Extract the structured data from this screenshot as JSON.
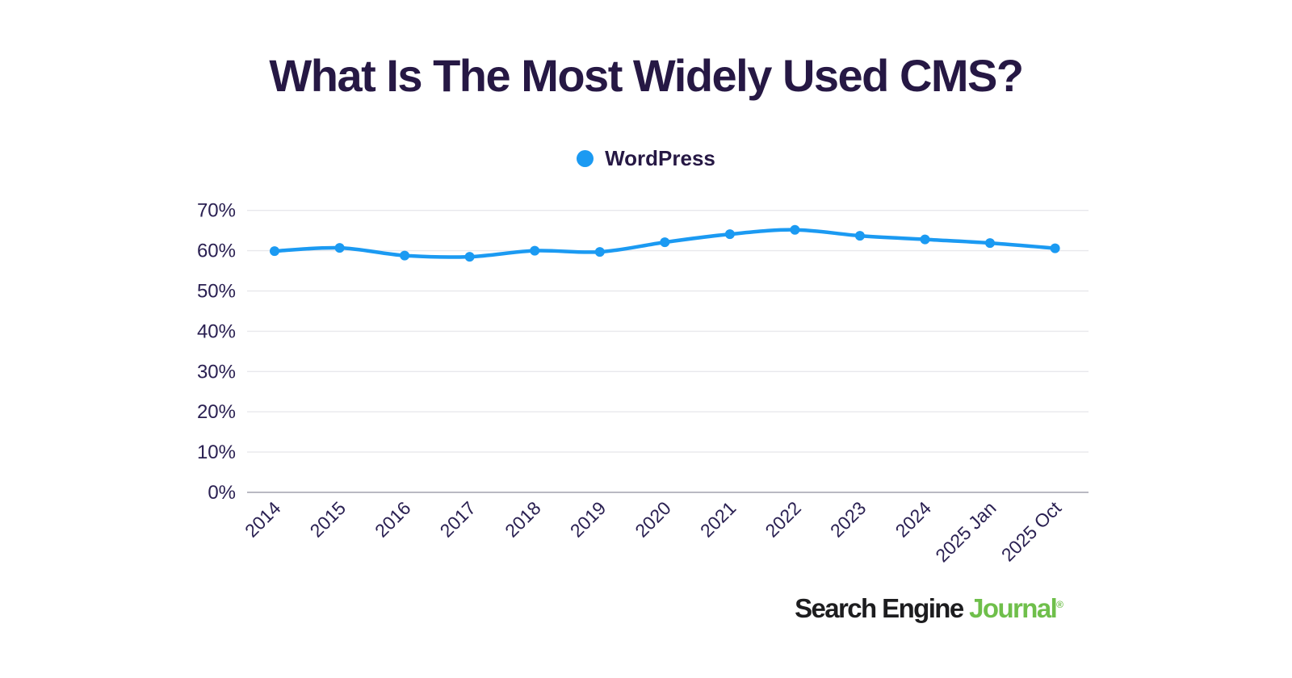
{
  "page": {
    "background": "#ffffff"
  },
  "title": "What Is The Most Widely Used CMS?",
  "legend": {
    "label": "WordPress"
  },
  "footer": {
    "brand_primary": "Search Engine",
    "brand_secondary": "Journal",
    "registered_mark": "®"
  },
  "colors": {
    "accent_blue": "#1B9AF2",
    "title_text": "#261844",
    "tick_text": "#2A2052",
    "gridline": "#E8E8EC",
    "axis_line": "#B9B9C2",
    "brand_dark": "#1D1D1F",
    "brand_green": "#6FBF4B"
  },
  "chart_data": {
    "type": "line",
    "title": "What Is The Most Widely Used CMS?",
    "categories": [
      "2014",
      "2015",
      "2016",
      "2017",
      "2018",
      "2019",
      "2020",
      "2021",
      "2022",
      "2023",
      "2024",
      "2025 Jan",
      "2025 Oct"
    ],
    "series": [
      {
        "name": "WordPress",
        "values": [
          59.9,
          60.7,
          58.8,
          58.5,
          60.0,
          59.7,
          62.1,
          64.1,
          65.2,
          63.7,
          62.8,
          61.9,
          60.6
        ]
      }
    ],
    "xlabel": "",
    "ylabel": "",
    "ylim": [
      0,
      70
    ],
    "ytick_step": 10,
    "ytick_labels": [
      "0%",
      "10%",
      "20%",
      "30%",
      "40%",
      "50%",
      "60%",
      "70%"
    ],
    "grid": true,
    "legend_position": "top-center",
    "x_tick_rotation": -45
  }
}
